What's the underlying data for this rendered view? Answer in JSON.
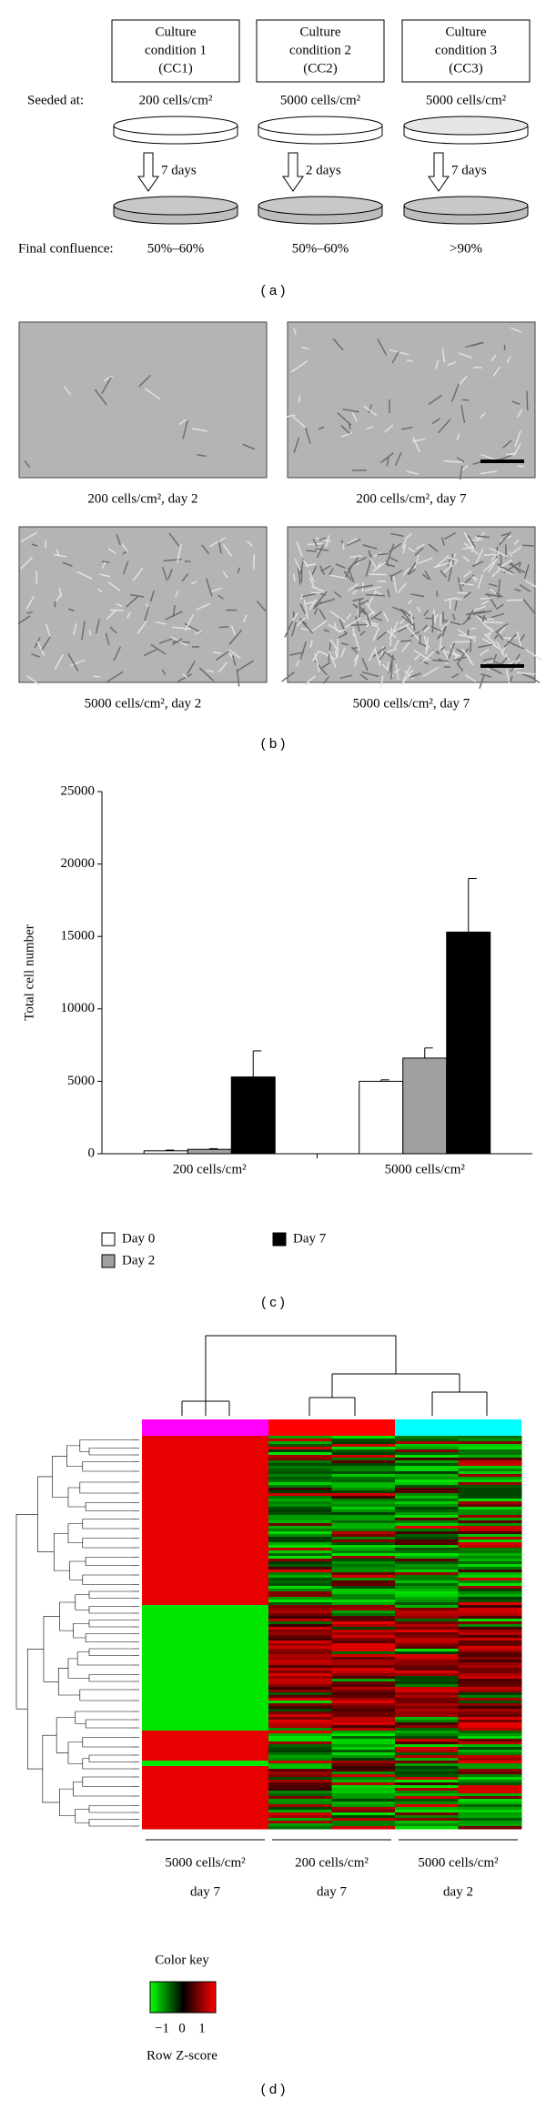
{
  "panel_a": {
    "boxes": [
      [
        "Culture",
        "condition 1",
        "(CC1)"
      ],
      [
        "Culture",
        "condition 2",
        "(CC2)"
      ],
      [
        "Culture",
        "condition 3",
        "(CC3)"
      ]
    ],
    "seeded_label": "Seeded at:",
    "seeded": [
      "200 cells/cm²",
      "5000 cells/cm²",
      "5000 cells/cm²"
    ],
    "durations": [
      "7 days",
      "2 days",
      "7 days"
    ],
    "final_label": "Final confluence:",
    "final": [
      "50%–60%",
      "50%–60%",
      ">90%"
    ],
    "label": "( a )"
  },
  "panel_b": {
    "captions": [
      "200 cells/cm², day 2",
      "200 cells/cm², day 7",
      "5000 cells/cm², day 2",
      "5000 cells/cm², day 7"
    ],
    "label": "( b )"
  },
  "chart_data": {
    "type": "bar",
    "y_label": "Total cell number",
    "categories": [
      "200 cells/cm²",
      "5000 cells/cm²"
    ],
    "series": [
      {
        "name": "Day 0",
        "color": "#ffffff",
        "values": [
          200,
          5000
        ],
        "errors": [
          50,
          100
        ]
      },
      {
        "name": "Day 2",
        "color": "#a0a0a0",
        "values": [
          300,
          6600
        ],
        "errors": [
          50,
          700
        ]
      },
      {
        "name": "Day 7",
        "color": "#000000",
        "values": [
          5300,
          15300
        ],
        "errors": [
          1800,
          3700
        ]
      }
    ],
    "ylim": [
      0,
      25000
    ],
    "yticks": [
      0,
      5000,
      10000,
      15000,
      20000,
      25000
    ],
    "label": "( c )"
  },
  "panel_d": {
    "column_labels": [
      [
        "5000 cells/cm²",
        "day 7"
      ],
      [
        "200 cells/cm²",
        "day 7"
      ],
      [
        "5000 cells/cm²",
        "day 2"
      ]
    ],
    "column_colors": [
      "#ff00ff",
      "#ff0000",
      "#00ffff"
    ],
    "color_key": {
      "title": "Color key",
      "ticks": [
        "−1",
        "0",
        "1"
      ],
      "label": "Row Z-score"
    },
    "label": "( d )"
  }
}
